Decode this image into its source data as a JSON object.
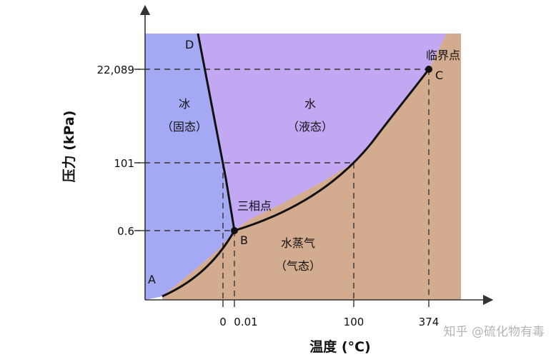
{
  "diagram": {
    "y_axis_title": "压力 (kPa)",
    "x_axis_title": "温度 (°C)",
    "y_ticks": [
      "22,089",
      "101",
      "0.6"
    ],
    "x_ticks": [
      "0",
      "0.01",
      "100",
      "374"
    ],
    "regions": {
      "solid_name": "冰",
      "solid_state": "（固态）",
      "liquid_name": "水",
      "liquid_state": "（液态）",
      "vapor_name": "水蒸气",
      "vapor_state": "（气态）"
    },
    "points": {
      "A": "A",
      "B": "B",
      "C": "C",
      "D": "D",
      "triple_point": "三相点",
      "critical_point": "临界点"
    },
    "colors": {
      "solid": "#a5a9f4",
      "liquid": "#c2a8f2",
      "vapor": "#d3ab8e"
    }
  },
  "watermark": "知乎 @硫化物有毒"
}
